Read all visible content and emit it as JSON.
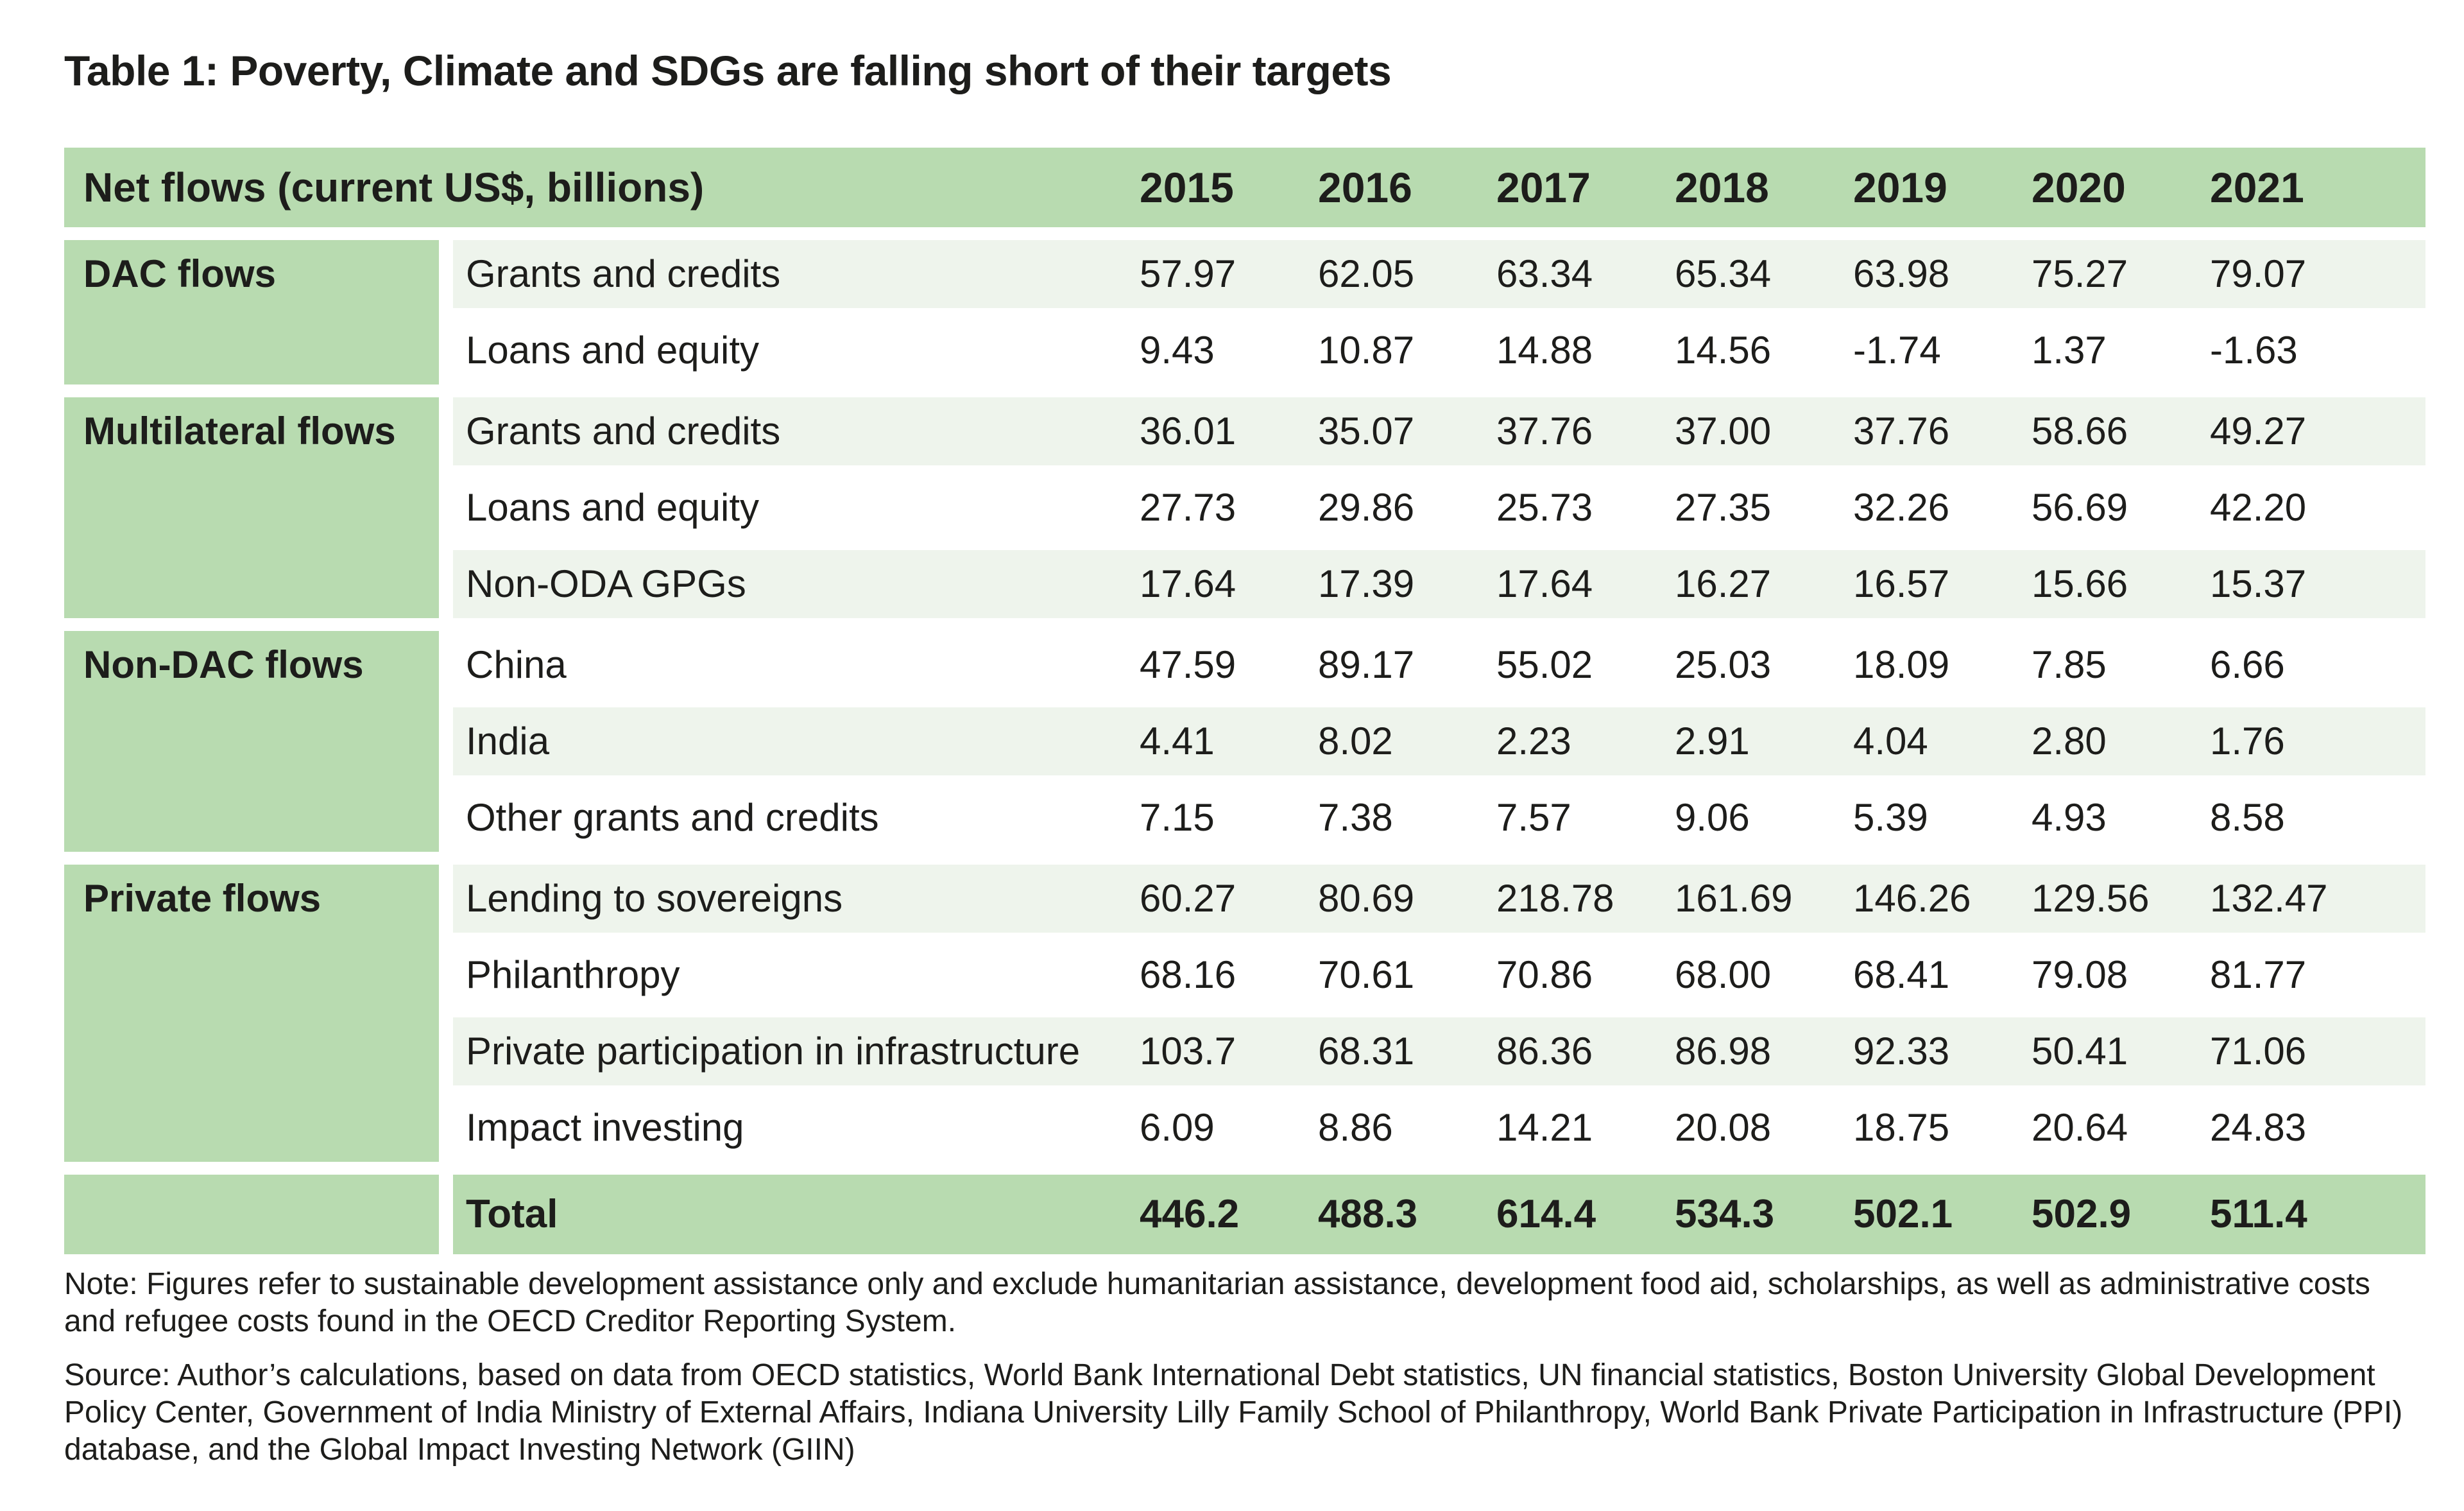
{
  "title": "Table 1: Poverty, Climate and SDGs are falling short of their targets",
  "header": {
    "label": "Net flows (current US$, billions)",
    "years": [
      "2015",
      "2016",
      "2017",
      "2018",
      "2019",
      "2020",
      "2021"
    ]
  },
  "groups": [
    {
      "name": "DAC flows",
      "rows": [
        {
          "label": "Grants and credits",
          "values": [
            "57.97",
            "62.05",
            "63.34",
            "65.34",
            "63.98",
            "75.27",
            "79.07"
          ]
        },
        {
          "label": "Loans and equity",
          "values": [
            "9.43",
            "10.87",
            "14.88",
            "14.56",
            "-1.74",
            "1.37",
            "-1.63"
          ]
        }
      ]
    },
    {
      "name": "Multilateral flows",
      "rows": [
        {
          "label": "Grants and credits",
          "values": [
            "36.01",
            "35.07",
            "37.76",
            "37.00",
            "37.76",
            "58.66",
            "49.27"
          ]
        },
        {
          "label": "Loans and equity",
          "values": [
            "27.73",
            "29.86",
            "25.73",
            "27.35",
            "32.26",
            "56.69",
            "42.20"
          ]
        },
        {
          "label": "Non-ODA GPGs",
          "values": [
            "17.64",
            "17.39",
            "17.64",
            "16.27",
            "16.57",
            "15.66",
            "15.37"
          ]
        }
      ]
    },
    {
      "name": "Non-DAC flows",
      "rows": [
        {
          "label": "China",
          "values": [
            "47.59",
            "89.17",
            "55.02",
            "25.03",
            "18.09",
            "7.85",
            "6.66"
          ]
        },
        {
          "label": "India",
          "values": [
            "4.41",
            "8.02",
            "2.23",
            "2.91",
            "4.04",
            "2.80",
            "1.76"
          ]
        },
        {
          "label": "Other grants and credits",
          "values": [
            "7.15",
            "7.38",
            "7.57",
            "9.06",
            "5.39",
            "4.93",
            "8.58"
          ]
        }
      ]
    },
    {
      "name": "Private flows",
      "rows": [
        {
          "label": "Lending to sovereigns",
          "values": [
            "60.27",
            "80.69",
            "218.78",
            "161.69",
            "146.26",
            "129.56",
            "132.47"
          ]
        },
        {
          "label": "Philanthropy",
          "values": [
            "68.16",
            "70.61",
            "70.86",
            "68.00",
            "68.41",
            "79.08",
            "81.77"
          ]
        },
        {
          "label": "Private participation in infrastructure",
          "values": [
            "103.7",
            "68.31",
            "86.36",
            "86.98",
            "92.33",
            "50.41",
            "71.06"
          ]
        },
        {
          "label": "Impact investing",
          "values": [
            "6.09",
            "8.86",
            "14.21",
            "20.08",
            "18.75",
            "20.64",
            "24.83"
          ]
        }
      ]
    }
  ],
  "total": {
    "label": "Total",
    "values": [
      "446.2",
      "488.3",
      "614.4",
      "534.3",
      "502.1",
      "502.9",
      "511.4"
    ]
  },
  "note": "Note: Figures refer to sustainable development assistance only and exclude humanitarian assistance, development food aid, scholarships, as well as administrative costs and refugee costs found in the OECD Creditor Reporting System.",
  "source": "Source: Author’s calculations, based on data from OECD statistics, World Bank International Debt statistics, UN financial statistics, Boston University Global Development Policy Center, Government of India Ministry of External Affairs, Indiana University Lilly Family School of Philanthropy, World Bank Private Participation in Infrastructure (PPI) database, and the Global Impact Investing Network (GIIN)",
  "colors": {
    "header_green": "#b8dbb0",
    "row_shade": "#eef4ec",
    "text": "#1d1d1b"
  }
}
